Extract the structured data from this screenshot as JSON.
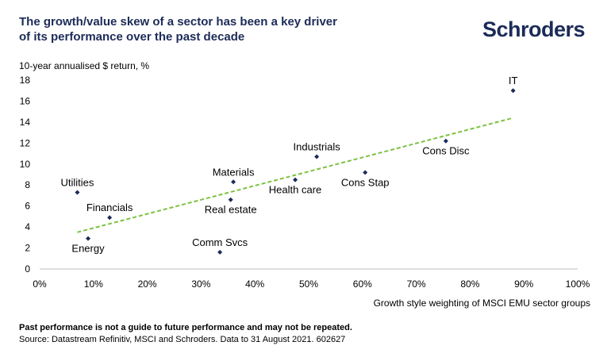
{
  "header": {
    "title_lines": [
      "The growth/value skew of a sector has been a key driver",
      "of its performance over the past decade"
    ],
    "logo_text": "Schroders"
  },
  "footer": {
    "note": "Past performance is not a guide to future performance and may not be repeated.",
    "source": "Source: Datastream Refinitiv, MSCI and Schroders. Data to 31 August 2021. 602627"
  },
  "colors": {
    "navy": "#1c2b58",
    "marker": "#1c2b58",
    "trendline": "#7cc242",
    "text": "#000000"
  },
  "chart_data": {
    "type": "scatter",
    "title": "The growth/value skew of a sector has been a key driver of its performance over the past decade",
    "ylabel": "10-year annualised $ return, %",
    "xlabel": "Growth style weighting of MSCI EMU sector groups",
    "xlim": [
      0,
      100
    ],
    "ylim": [
      0,
      18
    ],
    "x_ticks": [
      0,
      10,
      20,
      30,
      40,
      50,
      60,
      70,
      80,
      90,
      100
    ],
    "x_tick_labels": [
      "0%",
      "10%",
      "20%",
      "30%",
      "40%",
      "50%",
      "60%",
      "70%",
      "80%",
      "90%",
      "100%"
    ],
    "y_ticks": [
      0,
      2,
      4,
      6,
      8,
      10,
      12,
      14,
      16,
      18
    ],
    "y_tick_labels": [
      "0",
      "2",
      "4",
      "6",
      "8",
      "10",
      "12",
      "14",
      "16",
      "18"
    ],
    "grid": false,
    "points": [
      {
        "label": "Utilities",
        "x": 7,
        "y": 7.3,
        "label_pos": "above"
      },
      {
        "label": "Financials",
        "x": 13,
        "y": 4.9,
        "label_pos": "above"
      },
      {
        "label": "Energy",
        "x": 9,
        "y": 2.9,
        "label_pos": "below"
      },
      {
        "label": "Materials",
        "x": 36,
        "y": 8.3,
        "label_pos": "above"
      },
      {
        "label": "Real estate",
        "x": 35.5,
        "y": 6.6,
        "label_pos": "below"
      },
      {
        "label": "Comm Svcs",
        "x": 33.5,
        "y": 1.6,
        "label_pos": "above"
      },
      {
        "label": "Industrials",
        "x": 51.5,
        "y": 10.7,
        "label_pos": "above"
      },
      {
        "label": "Health care",
        "x": 47.5,
        "y": 8.5,
        "label_pos": "below"
      },
      {
        "label": "Cons Stap",
        "x": 60.5,
        "y": 9.2,
        "label_pos": "below"
      },
      {
        "label": "Cons Disc",
        "x": 75.5,
        "y": 12.2,
        "label_pos": "below"
      },
      {
        "label": "IT",
        "x": 88,
        "y": 17.0,
        "label_pos": "above"
      }
    ],
    "trendline": {
      "style": "dashed",
      "x": [
        7,
        88
      ],
      "y": [
        3.5,
        14.4
      ]
    }
  }
}
